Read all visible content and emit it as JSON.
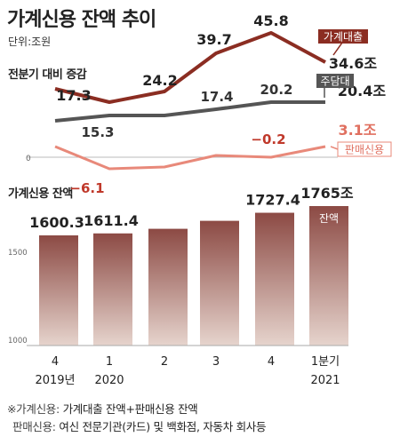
{
  "header": {
    "title": "가계신용 잔액 추이",
    "unit": "단위:조원"
  },
  "top_section_label": "전분기 대비 증감",
  "bottom_section_label": "가계신용 잔액",
  "footnotes": [
    {
      "key": "※가계신용:",
      "text": "가계대출 잔액+판매신용 잔액"
    },
    {
      "key": "판매신용:",
      "text": "여신 전문기관(카드) 및 백화점, 자동차 회사등"
    }
  ],
  "colors": {
    "household_loan": "#8b2d22",
    "mortgage": "#555555",
    "sales_credit": "#e8897a",
    "bar_top": "#8c4a44",
    "bar_bottom": "#e6d4cd"
  },
  "chart_data": [
    {
      "type": "line",
      "title": "전분기 대비 증감",
      "x": [
        "4 2019년",
        "1 2020",
        "2",
        "3",
        "4",
        "1분기 2021"
      ],
      "baseline_label": "0",
      "grid": false,
      "series": [
        {
          "name": "가계대출",
          "values": [
            17.3,
            null,
            24.2,
            39.7,
            45.8,
            34.6
          ],
          "labels": [
            "17.3",
            "",
            "24.2",
            "39.7",
            "45.8",
            "34.6조"
          ]
        },
        {
          "name": "주담대",
          "values": [
            null,
            15.3,
            null,
            17.4,
            20.2,
            20.4
          ],
          "labels": [
            "",
            "15.3",
            "",
            "17.4",
            "20.2",
            "20.4조"
          ]
        },
        {
          "name": "판매신용",
          "values": [
            null,
            -6.1,
            null,
            null,
            -0.2,
            3.1
          ],
          "labels": [
            "",
            "−6.1",
            "",
            "",
            "−0.2",
            "3.1조"
          ]
        }
      ]
    },
    {
      "type": "bar",
      "title": "가계신용 잔액",
      "categories": [
        "4",
        "1",
        "2",
        "3",
        "4",
        "1분기"
      ],
      "year_labels": [
        "2019년",
        "2020",
        "",
        "",
        "",
        "2021"
      ],
      "values": [
        1600.3,
        1611.4,
        1637.3,
        1682.1,
        1727.4,
        1765
      ],
      "value_labels": [
        "1600.3",
        "1611.4",
        "",
        "",
        "1727.4",
        "1765조"
      ],
      "highlight_label": "잔액",
      "yticks": [
        1000,
        1500
      ],
      "ylim": [
        1000,
        1800
      ]
    }
  ]
}
